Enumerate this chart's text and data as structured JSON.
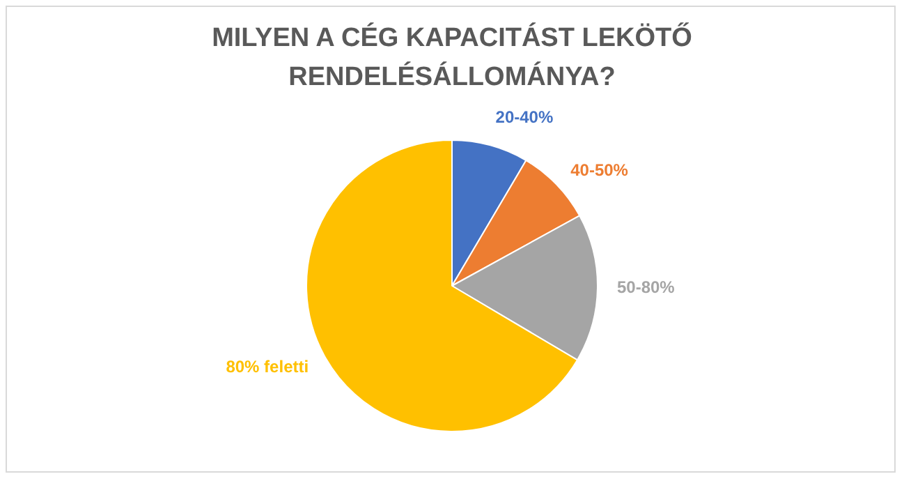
{
  "chart_data": {
    "type": "pie",
    "title": "MILYEN A CÉG KAPACITÁST LEKÖTŐ RENDELÉSÁLLOMÁNYA?",
    "categories": [
      "20-40%",
      "40-50%",
      "50-80%",
      "80% feletti"
    ],
    "values": [
      8.5,
      8.5,
      16.5,
      66.5
    ],
    "colors": [
      "#4472c4",
      "#ed7d31",
      "#a5a5a5",
      "#ffc000"
    ],
    "legend": false
  }
}
